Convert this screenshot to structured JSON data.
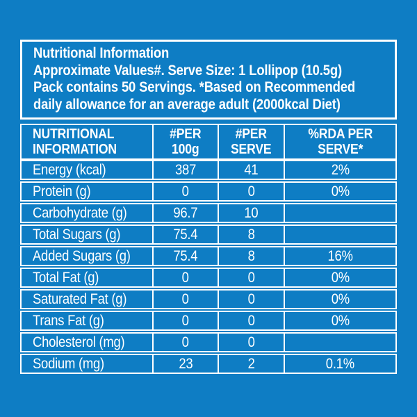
{
  "colors": {
    "background": "#0e7dc4",
    "line": "#ffffff",
    "text": "#ffffff"
  },
  "header": {
    "title": "Nutritional Information",
    "line2": "Approximate Values#. Serve Size: 1 Lollipop (10.5g)",
    "line3": "Pack contains 50 Servings. *Based on Recommended",
    "line4": "daily allowance for an average adult (2000kcal Diet)"
  },
  "table": {
    "columns": {
      "info": {
        "l1": "NUTRITIONAL",
        "l2": "INFORMATION"
      },
      "per100": {
        "l1": "#PER",
        "l2": "100g"
      },
      "perServe": {
        "l1": "#PER",
        "l2": "SERVE"
      },
      "rda": {
        "l1": "%RDA PER",
        "l2": "SERVE*"
      }
    },
    "rows": [
      {
        "label": "Energy (kcal)",
        "per100": "387",
        "perServe": "41",
        "rda": "2%"
      },
      {
        "label": "Protein (g)",
        "per100": "0",
        "perServe": "0",
        "rda": "0%"
      },
      {
        "label": "Carbohydrate (g)",
        "per100": "96.7",
        "perServe": "10",
        "rda": ""
      },
      {
        "label": "Total Sugars (g)",
        "per100": "75.4",
        "perServe": "8",
        "rda": ""
      },
      {
        "label": "Added Sugars (g)",
        "per100": "75.4",
        "perServe": "8",
        "rda": "16%"
      },
      {
        "label": "Total Fat (g)",
        "per100": "0",
        "perServe": "0",
        "rda": "0%"
      },
      {
        "label": "Saturated Fat (g)",
        "per100": "0",
        "perServe": "0",
        "rda": "0%"
      },
      {
        "label": "Trans Fat (g)",
        "per100": "0",
        "perServe": "0",
        "rda": "0%"
      },
      {
        "label": "Cholesterol (mg)",
        "per100": "0",
        "perServe": "0",
        "rda": ""
      },
      {
        "label": "Sodium (mg)",
        "per100": "23",
        "perServe": "2",
        "rda": "0.1%"
      }
    ]
  }
}
